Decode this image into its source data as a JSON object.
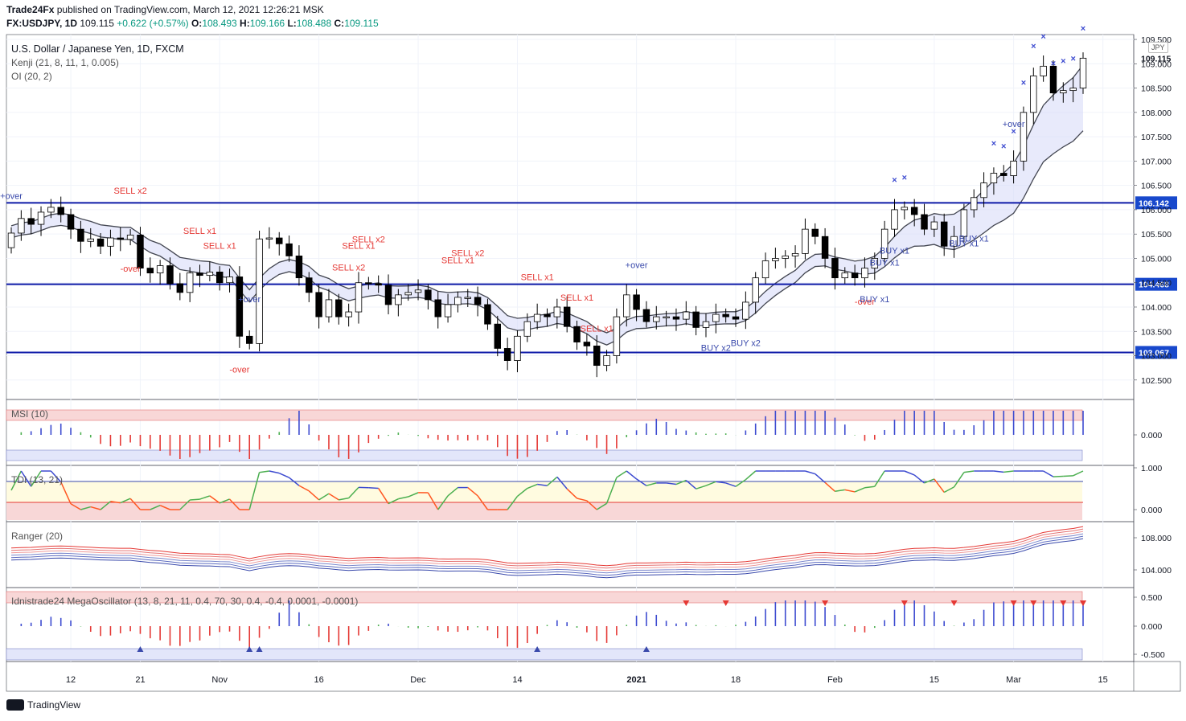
{
  "header": {
    "publisher": "Trade24Fx",
    "published_text": "published on TradingView.com, March 12, 2021 12:26:21 MSK",
    "symbol": "FX:USDJPY, 1D",
    "last": "109.115",
    "change": "+0.622 (+0.57%)",
    "o_label": "O:",
    "o_val": "108.493",
    "h_label": "H:",
    "h_val": "109.166",
    "l_label": "L:",
    "l_val": "108.488",
    "c_label": "C:",
    "c_val": "109.115"
  },
  "main_legend": {
    "title": "U.S. Dollar / Japanese Yen, 1D, FXCM",
    "kenji": "Kenji (21, 8, 11, 1, 0.005)",
    "oi": "OI (20, 2)"
  },
  "currency": "JPY",
  "footer": {
    "brand": "TradingView"
  },
  "colors": {
    "up": "#ffffff",
    "down": "#000000",
    "hline": "#0d1aa8",
    "price_badge": "#1848cc",
    "sell": "#e53935",
    "buy": "#3949ab",
    "band_fill": "#d5d9f7",
    "pink_fill": "#f8d7d7"
  },
  "chart_data": [
    {
      "type": "candlestick",
      "title": "U.S. Dollar / Japanese Yen, 1D, FXCM",
      "ylim": [
        102.1,
        109.6
      ],
      "y_ticks": [
        "109.500",
        "109.000",
        "108.500",
        "108.000",
        "107.500",
        "107.000",
        "106.500",
        "106.000",
        "105.500",
        "105.000",
        "104.500",
        "104.000",
        "103.500",
        "103.000",
        "102.500"
      ],
      "last_price": "109.115",
      "x_ticks": [
        "12",
        "21",
        "Nov",
        "16",
        "Dec",
        "14",
        "2021",
        "18",
        "Feb",
        "15",
        "Mar",
        "15"
      ],
      "hlines": [
        {
          "label": "106.142",
          "y": 106.142
        },
        {
          "label": "104.468",
          "y": 104.468
        },
        {
          "label": "103.067",
          "y": 103.067
        }
      ],
      "closes": [
        105.52,
        105.82,
        105.7,
        105.95,
        106.05,
        105.9,
        105.6,
        105.35,
        105.4,
        105.25,
        105.42,
        105.39,
        105.48,
        104.8,
        104.7,
        104.85,
        104.48,
        104.3,
        104.7,
        104.65,
        104.72,
        104.5,
        104.62,
        103.4,
        103.25,
        105.4,
        105.42,
        105.3,
        105.05,
        104.6,
        104.3,
        103.8,
        104.15,
        103.8,
        103.9,
        104.5,
        104.48,
        104.45,
        104.05,
        104.25,
        104.3,
        104.35,
        104.15,
        103.8,
        104.05,
        104.2,
        104.2,
        104.05,
        103.65,
        103.15,
        102.9,
        103.4,
        103.7,
        103.85,
        103.8,
        104.0,
        103.6,
        103.28,
        103.2,
        102.8,
        103.0,
        103.8,
        104.25,
        103.95,
        103.7,
        103.8,
        103.8,
        103.75,
        103.9,
        103.58,
        103.7,
        103.85,
        103.8,
        103.75,
        104.1,
        104.6,
        104.95,
        105.0,
        105.05,
        105.1,
        105.6,
        105.45,
        105.0,
        104.6,
        104.7,
        104.6,
        104.8,
        105.0,
        105.6,
        106.0,
        106.05,
        105.9,
        105.6,
        105.75,
        105.25,
        105.45,
        106.0,
        106.25,
        106.55,
        106.75,
        106.7,
        107.0,
        108.0,
        108.75,
        108.95,
        108.4,
        108.45,
        108.5,
        109.115
      ],
      "annotations": [
        {
          "text": "+over",
          "kind": "buy"
        },
        {
          "text": "SELL x2",
          "kind": "sell"
        },
        {
          "text": "-over",
          "kind": "sell"
        },
        {
          "text": "SELL x1",
          "kind": "sell"
        },
        {
          "text": "SELL x1",
          "kind": "sell"
        },
        {
          "text": "+over",
          "kind": "buy"
        },
        {
          "text": "-over",
          "kind": "sell"
        },
        {
          "text": "SELL x2",
          "kind": "sell"
        },
        {
          "text": "SELL x1",
          "kind": "sell"
        },
        {
          "text": "SELL x2",
          "kind": "sell"
        },
        {
          "text": "SELL x1",
          "kind": "sell"
        },
        {
          "text": "SELL x2",
          "kind": "sell"
        },
        {
          "text": "SELL x1",
          "kind": "sell"
        },
        {
          "text": "SELL x1",
          "kind": "sell"
        },
        {
          "text": "SELL x1",
          "kind": "sell"
        },
        {
          "text": "+over",
          "kind": "buy"
        },
        {
          "text": "BUY x2",
          "kind": "buy"
        },
        {
          "text": "BUY x2",
          "kind": "buy"
        },
        {
          "text": "-over",
          "kind": "sell"
        },
        {
          "text": "BUY x1",
          "kind": "buy"
        },
        {
          "text": "BUY x1",
          "kind": "buy"
        },
        {
          "text": "BUY x1",
          "kind": "buy"
        },
        {
          "text": "BUY x1",
          "kind": "buy"
        },
        {
          "text": "BUY x1",
          "kind": "buy"
        },
        {
          "text": "+over",
          "kind": "buy"
        }
      ]
    },
    {
      "type": "bar",
      "title": "MSI (10)",
      "y_ticks": [
        "0.000"
      ]
    },
    {
      "type": "line",
      "title": "TDI (13, 21)",
      "y_ticks": [
        "1.000",
        "0.000"
      ]
    },
    {
      "type": "line",
      "title": "Ranger (20)",
      "y_ticks": [
        "108.000",
        "104.000"
      ]
    },
    {
      "type": "bar",
      "title": "Idnistrade24 MegaOscillator (13, 8, 21, 11, 0.4, 70, 30, 0.4, -0.4, 0.0001, -0.0001)",
      "y_ticks": [
        "0.500",
        "0.000",
        "-0.500"
      ]
    }
  ]
}
